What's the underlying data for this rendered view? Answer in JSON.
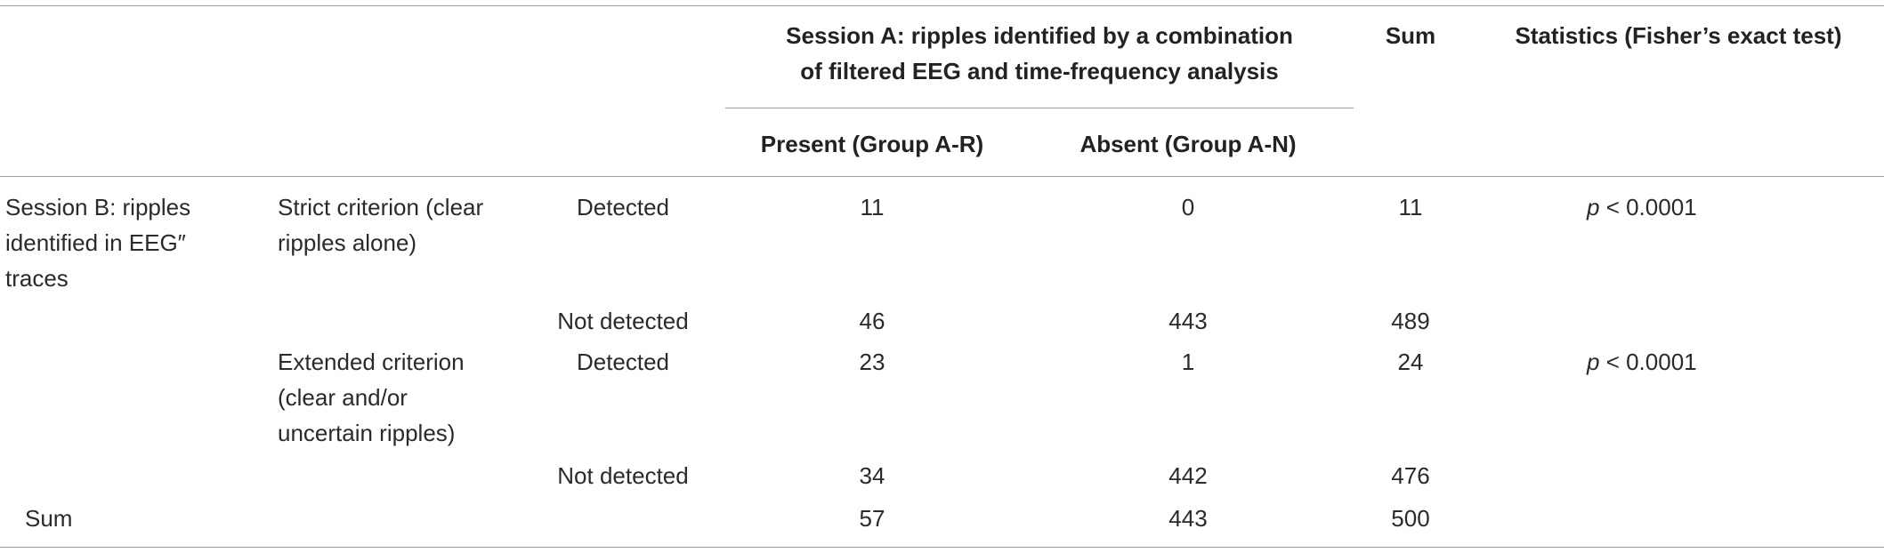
{
  "header": {
    "session_a_line1": "Session A: ripples identified by a combination",
    "session_a_line2": "of filtered EEG and time-frequency analysis",
    "sum": "Sum",
    "statistics": "Statistics (Fisher’s exact test)",
    "present": "Present (Group A-R)",
    "absent": "Absent (Group A-N)"
  },
  "row_header": {
    "session_b_line1": "Session B: ripples",
    "session_b_line2": "identified in EEG″",
    "session_b_line3": "traces",
    "strict_line1": "Strict criterion (clear",
    "strict_line2": "ripples alone)",
    "extended_line1": "Extended criterion",
    "extended_line2": "(clear and/or",
    "extended_line3": "uncertain ripples)",
    "sum": "Sum"
  },
  "rows": [
    {
      "label": "Detected",
      "present": "11",
      "absent": "0",
      "sum": "11",
      "p_symbol": "p",
      "p_rest": " < 0.0001"
    },
    {
      "label": "Not detected",
      "present": "46",
      "absent": "443",
      "sum": "489"
    },
    {
      "label": "Detected",
      "present": "23",
      "absent": "1",
      "sum": "24",
      "p_symbol": "p",
      "p_rest": " < 0.0001"
    },
    {
      "label": "Not detected",
      "present": "34",
      "absent": "442",
      "sum": "476"
    }
  ],
  "sum_row": {
    "present": "57",
    "absent": "443",
    "sum": "500"
  }
}
